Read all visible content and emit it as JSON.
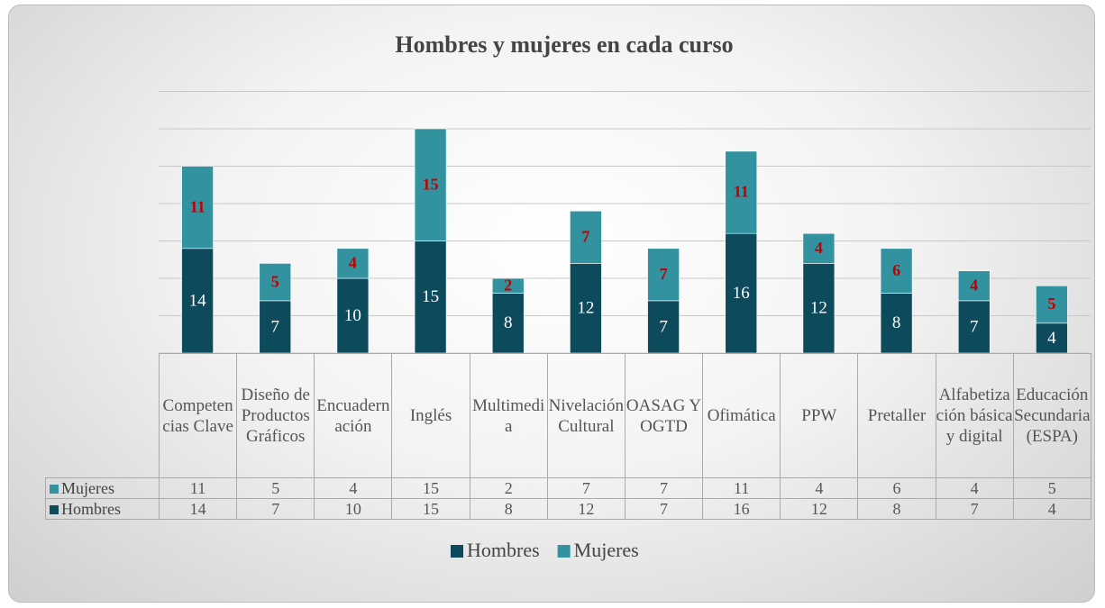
{
  "chart_data": {
    "type": "stacked_bar",
    "title": "Hombres y mujeres en cada curso",
    "categories": [
      "Competencias Clave",
      "Diseño de Productos Gráficos",
      "Encuadernación",
      "Inglés",
      "Multimedia",
      "Nivelación Cultural",
      "OASAG Y OGTD",
      "Ofimática",
      "PPW",
      "Pretaller",
      "Alfabetización básica y digital",
      "Educación Secundaria (ESPA)"
    ],
    "series": [
      {
        "name": "Hombres",
        "color": "#0d4a5c",
        "values": [
          14,
          7,
          10,
          15,
          8,
          12,
          7,
          16,
          12,
          8,
          7,
          4
        ]
      },
      {
        "name": "Mujeres",
        "color": "#3292a0",
        "values": [
          11,
          5,
          4,
          15,
          2,
          7,
          7,
          11,
          4,
          6,
          4,
          5
        ]
      }
    ],
    "ylim": [
      0,
      35
    ],
    "yticks": [
      0,
      5,
      10,
      15,
      20,
      25,
      30,
      35
    ],
    "grid": true,
    "legend": "bottom"
  }
}
